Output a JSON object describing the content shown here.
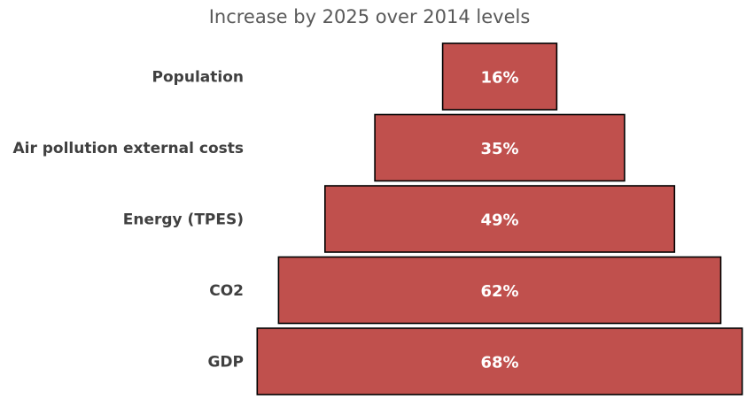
{
  "chart_data": {
    "type": "bar",
    "orientation": "horizontal",
    "layout": "centered-funnel",
    "title": "Increase by 2025 over 2014 levels",
    "xlabel": "",
    "ylabel": "",
    "categories": [
      "Population",
      "Air pollution external costs",
      "Energy (TPES)",
      "CO2",
      "GDP"
    ],
    "values": [
      16,
      35,
      49,
      62,
      68
    ],
    "value_labels": [
      "16%",
      "35%",
      "49%",
      "62%",
      "68%"
    ],
    "unit": "%",
    "bar_color": "#C0504D",
    "grid": false,
    "legend": "none"
  }
}
